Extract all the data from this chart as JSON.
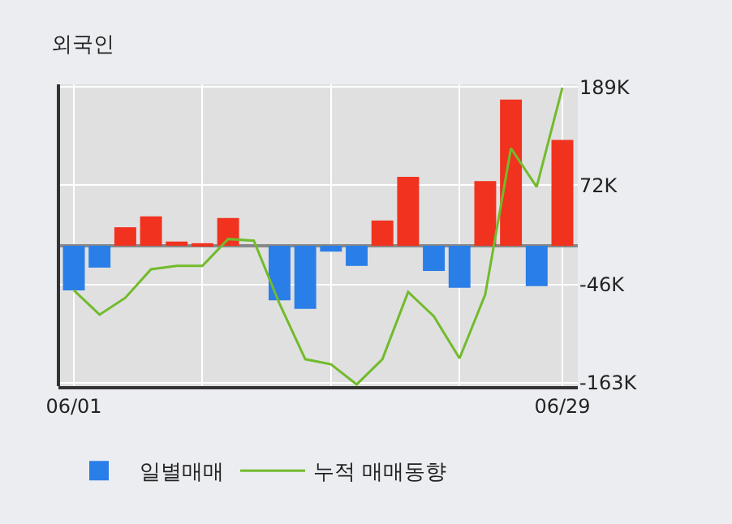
{
  "chart_data": {
    "type": "bar",
    "title": "외국인",
    "categories": [
      "06/01",
      null,
      null,
      null,
      null,
      null,
      null,
      null,
      null,
      null,
      null,
      null,
      null,
      null,
      null,
      null,
      null,
      null,
      null,
      "06/29"
    ],
    "series": [
      {
        "name": "일별매매",
        "colors": [
          "#2a7ee8",
          "#2a7ee8",
          "#f0321e",
          "#f0321e",
          "#f0321e",
          "#f0321e",
          "#f0321e",
          "#f0321e",
          "#2a7ee8",
          "#2a7ee8",
          "#2a7ee8",
          "#2a7ee8",
          "#f0321e",
          "#f0321e",
          "#2a7ee8",
          "#2a7ee8",
          "#f0321e",
          "#f0321e",
          "#2a7ee8",
          "#f0321e"
        ],
        "values": [
          -53,
          -26,
          22,
          35,
          5,
          3,
          33,
          0,
          -65,
          -75,
          -7,
          -24,
          30,
          82,
          -30,
          -50,
          77,
          174,
          -48,
          126
        ]
      },
      {
        "name": "누적 매매동향",
        "type": "line",
        "color": "#72bb2c",
        "values": [
          -53,
          -82,
          -62,
          -28,
          -24,
          -24,
          8,
          6,
          -69,
          -135,
          -141,
          -165,
          -135,
          -55,
          -84,
          -134,
          -58,
          116,
          70,
          188
        ]
      }
    ],
    "ylim": [
      -167,
      192
    ],
    "yticks": [
      {
        "value": 189,
        "label": "189K"
      },
      {
        "value": 72,
        "label": "72K"
      },
      {
        "value": -46,
        "label": "-46K"
      },
      {
        "value": -163,
        "label": "-163K"
      }
    ],
    "grid": true,
    "legend": "bottom",
    "marker": "none",
    "line_style": "solid"
  }
}
